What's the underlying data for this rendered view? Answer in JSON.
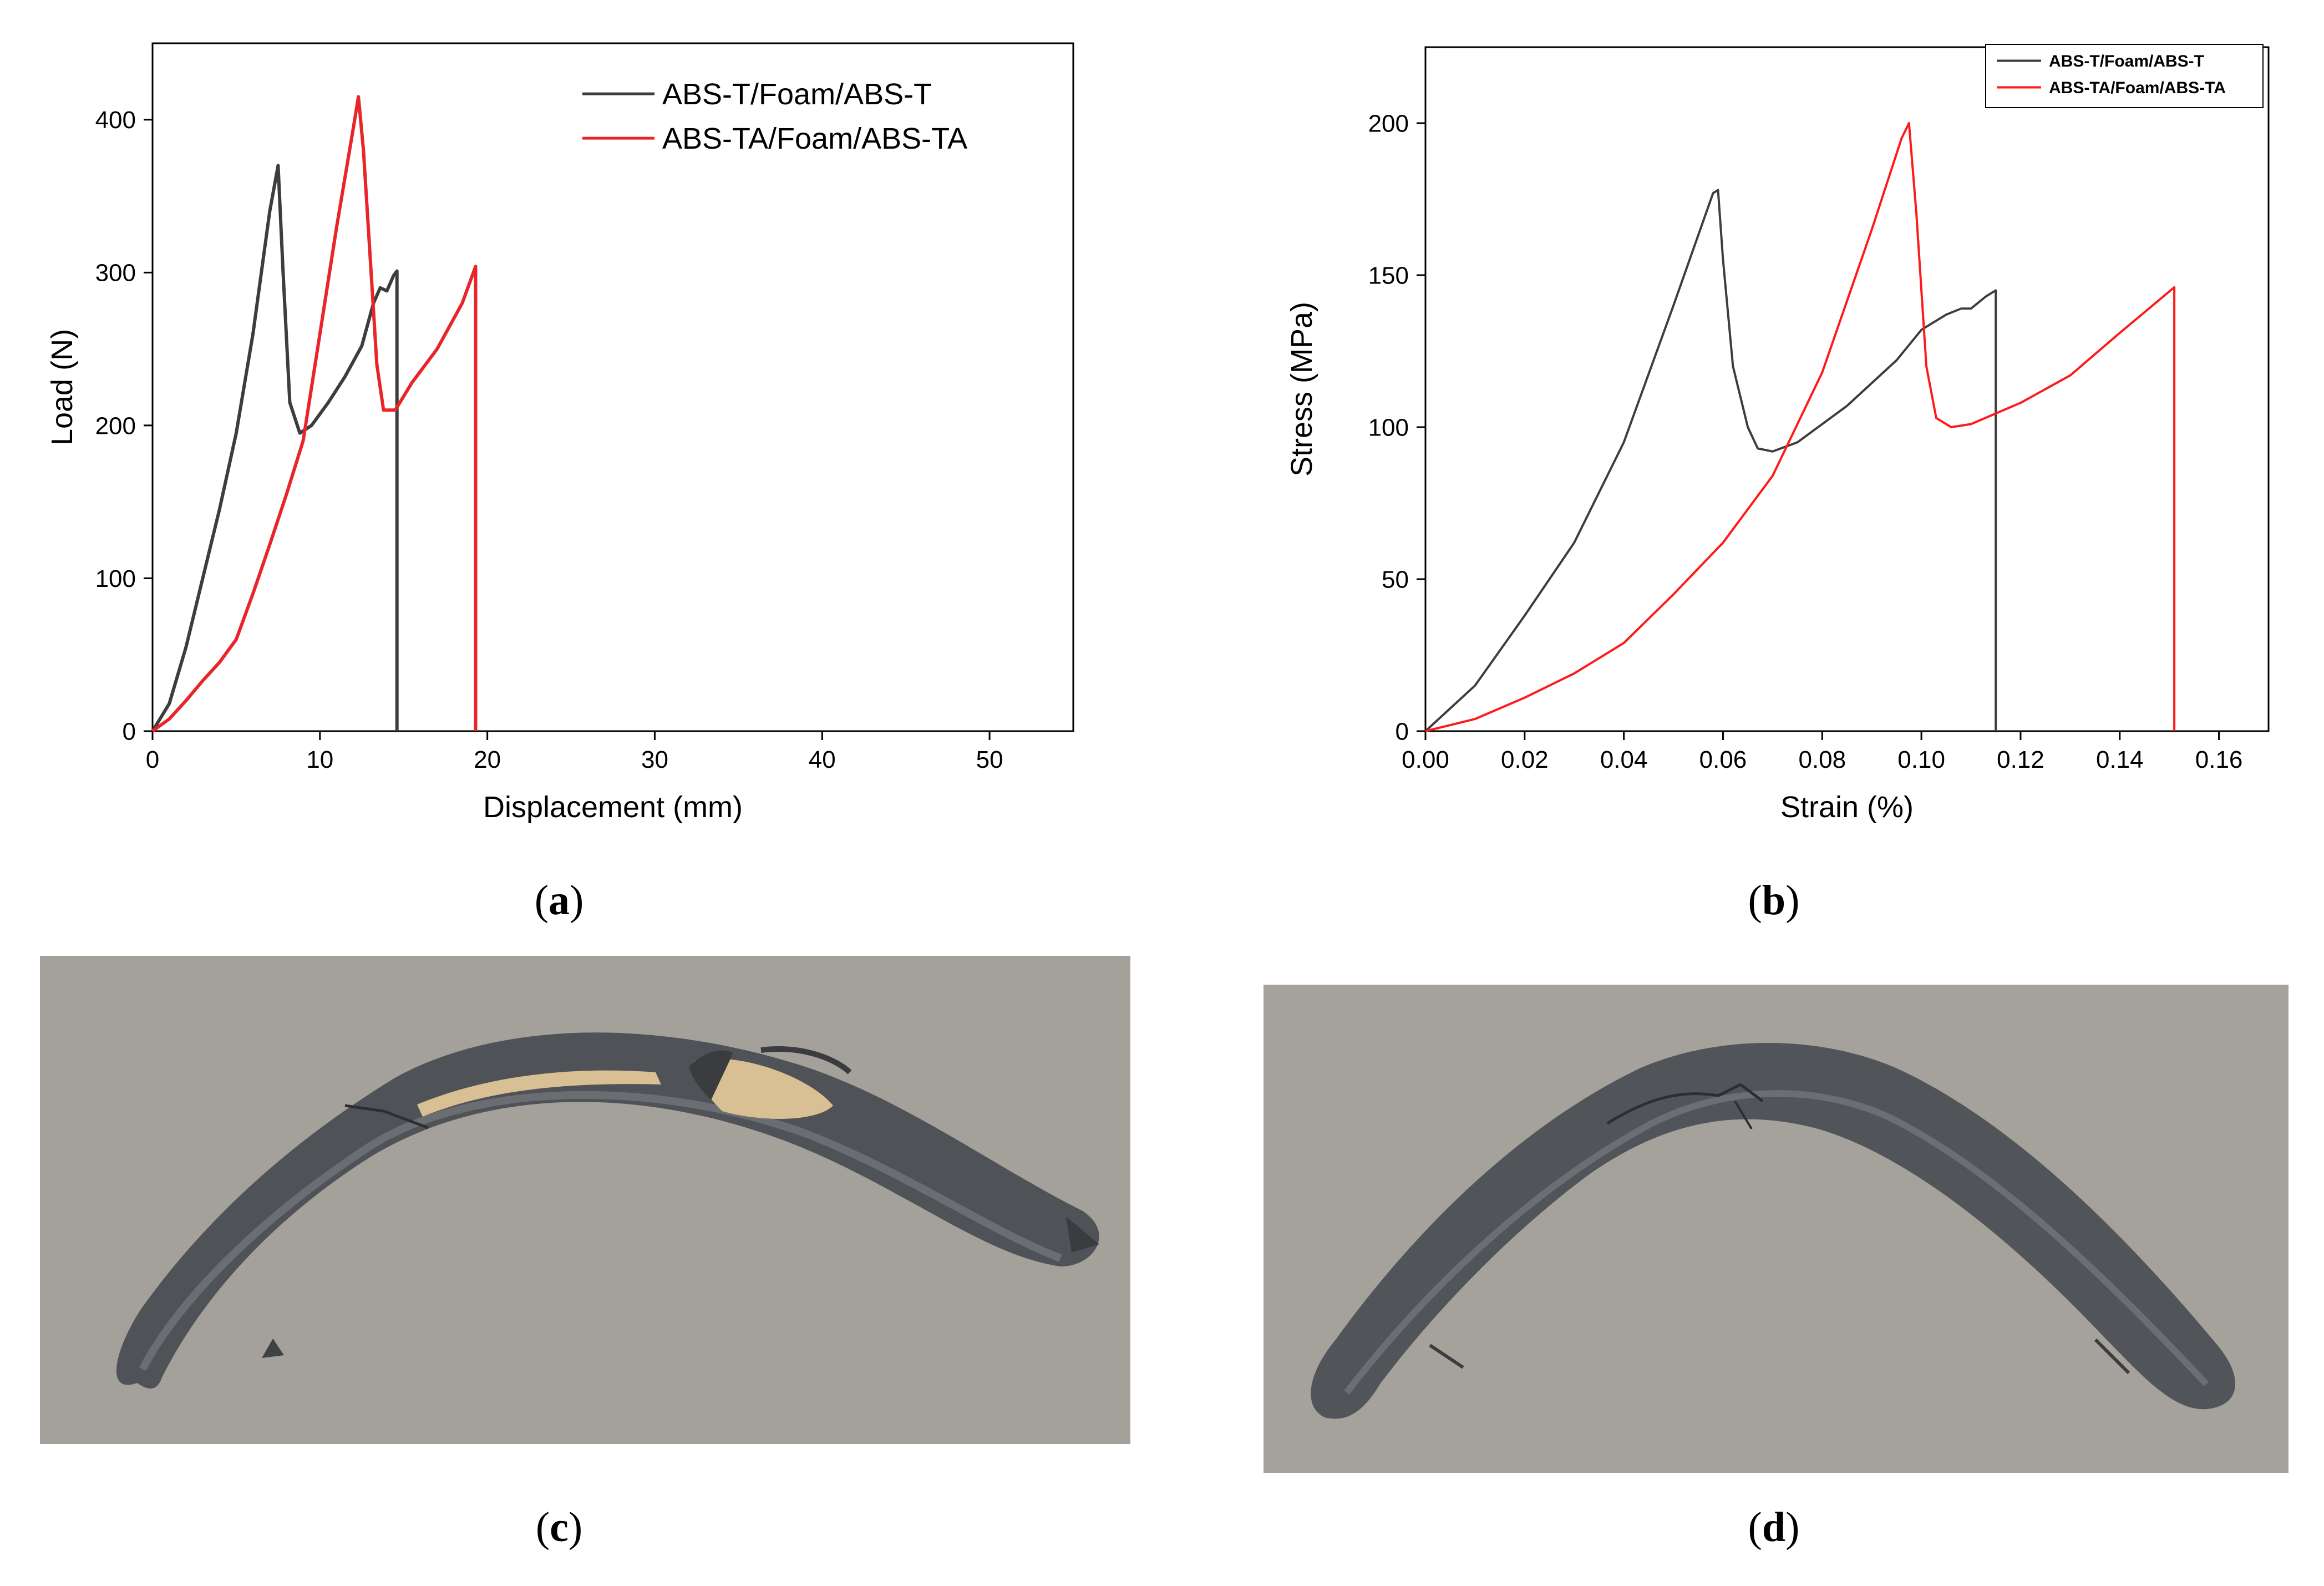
{
  "captions": {
    "a": {
      "open": "(",
      "letter": "a",
      "close": ")"
    },
    "b": {
      "open": "(",
      "letter": "b",
      "close": ")"
    },
    "c": {
      "open": "(",
      "letter": "c",
      "close": ")"
    },
    "d": {
      "open": "(",
      "letter": "d",
      "close": ")"
    }
  },
  "colors": {
    "t": "#3d3d3d",
    "ta": "#e8262a",
    "ta_b": "#ff1a1a",
    "photo_bg": "#a4a29b",
    "specimen": "#4f5256",
    "foam": "#d9bf94"
  },
  "chart_data": [
    {
      "type": "line",
      "panel": "a",
      "xlabel": "Displacement (mm)",
      "ylabel": "Load (N)",
      "xlim": [
        0,
        55
      ],
      "ylim": [
        0,
        450
      ],
      "xticks": [
        0,
        10,
        20,
        30,
        40,
        50
      ],
      "yticks": [
        0,
        100,
        200,
        300,
        400
      ],
      "legend_position": "top-right",
      "series": [
        {
          "name": "ABS-T/Foam/ABS-T",
          "color": "#3d3d3d",
          "points": [
            [
              0,
              0
            ],
            [
              1,
              18
            ],
            [
              2,
              55
            ],
            [
              3,
              100
            ],
            [
              4,
              145
            ],
            [
              5,
              195
            ],
            [
              6,
              260
            ],
            [
              7,
              340
            ],
            [
              7.5,
              370
            ],
            [
              7.8,
              300
            ],
            [
              8.2,
              215
            ],
            [
              8.8,
              195
            ],
            [
              9.5,
              200
            ],
            [
              10.5,
              215
            ],
            [
              11.5,
              232
            ],
            [
              12.5,
              252
            ],
            [
              13.2,
              280
            ],
            [
              13.6,
              290
            ],
            [
              14,
              288
            ],
            [
              14.4,
              298
            ],
            [
              14.6,
              301
            ],
            [
              14.6,
              0
            ]
          ]
        },
        {
          "name": "ABS-TA/Foam/ABS-TA",
          "color": "#e8262a",
          "points": [
            [
              0,
              0
            ],
            [
              1,
              8
            ],
            [
              2,
              20
            ],
            [
              3,
              33
            ],
            [
              4,
              45
            ],
            [
              5,
              60
            ],
            [
              6,
              90
            ],
            [
              7,
              122
            ],
            [
              8,
              155
            ],
            [
              9,
              190
            ],
            [
              10,
              260
            ],
            [
              11,
              330
            ],
            [
              12,
              395
            ],
            [
              12.3,
              415
            ],
            [
              12.6,
              380
            ],
            [
              13,
              310
            ],
            [
              13.4,
              240
            ],
            [
              13.8,
              210
            ],
            [
              14.5,
              210
            ],
            [
              15.5,
              228
            ],
            [
              17,
              250
            ],
            [
              18.5,
              280
            ],
            [
              19.3,
              304
            ],
            [
              19.3,
              0
            ]
          ]
        }
      ]
    },
    {
      "type": "line",
      "panel": "b",
      "xlabel": "Strain (%)",
      "ylabel": "Stress (MPa)",
      "xlim": [
        0,
        0.17
      ],
      "ylim": [
        0,
        225
      ],
      "xticks": [
        "0.00",
        "0.02",
        "0.04",
        "0.06",
        "0.08",
        "0.10",
        "0.12",
        "0.14",
        "0.16"
      ],
      "yticks": [
        0,
        50,
        100,
        150,
        200
      ],
      "legend_position": "top-right",
      "series": [
        {
          "name": "ABS-T/Foam/ABS-T",
          "color": "#3d3d3d",
          "points": [
            [
              0,
              0
            ],
            [
              0.01,
              15
            ],
            [
              0.02,
              38
            ],
            [
              0.03,
              62
            ],
            [
              0.04,
              95
            ],
            [
              0.05,
              140
            ],
            [
              0.058,
              177
            ],
            [
              0.059,
              178
            ],
            [
              0.06,
              155
            ],
            [
              0.062,
              120
            ],
            [
              0.065,
              100
            ],
            [
              0.067,
              93
            ],
            [
              0.07,
              92
            ],
            [
              0.075,
              95
            ],
            [
              0.085,
              107
            ],
            [
              0.095,
              122
            ],
            [
              0.1,
              132
            ],
            [
              0.105,
              137
            ],
            [
              0.108,
              139
            ],
            [
              0.11,
              139
            ],
            [
              0.113,
              143
            ],
            [
              0.115,
              145
            ],
            [
              0.115,
              0
            ]
          ]
        },
        {
          "name": "ABS-TA/Foam/ABS-TA",
          "color": "#ff1a1a",
          "points": [
            [
              0,
              0
            ],
            [
              0.01,
              4
            ],
            [
              0.02,
              11
            ],
            [
              0.03,
              19
            ],
            [
              0.04,
              29
            ],
            [
              0.05,
              45
            ],
            [
              0.06,
              62
            ],
            [
              0.07,
              84
            ],
            [
              0.08,
              118
            ],
            [
              0.09,
              165
            ],
            [
              0.096,
              195
            ],
            [
              0.0975,
              200
            ],
            [
              0.099,
              170
            ],
            [
              0.101,
              120
            ],
            [
              0.103,
              103
            ],
            [
              0.106,
              100
            ],
            [
              0.11,
              101
            ],
            [
              0.12,
              108
            ],
            [
              0.13,
              117
            ],
            [
              0.14,
              131
            ],
            [
              0.151,
              146
            ],
            [
              0.151,
              0
            ]
          ]
        }
      ]
    }
  ]
}
